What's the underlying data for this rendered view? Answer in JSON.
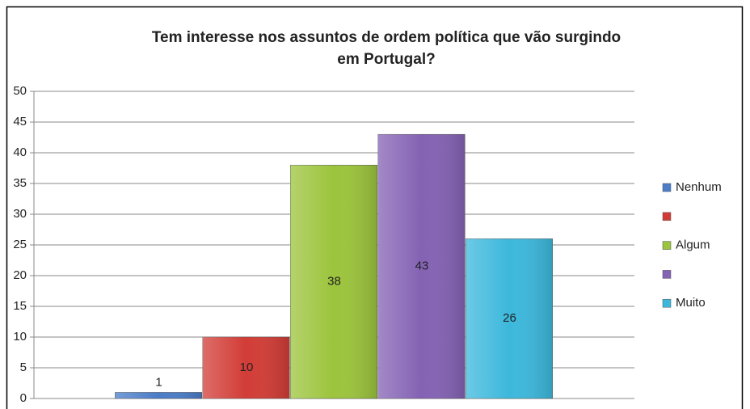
{
  "chart_data": {
    "type": "bar",
    "title": [
      "Tem interesse nos assuntos de ordem política que vão surgindo",
      "em Portugal?"
    ],
    "categories": [
      null
    ],
    "series": [
      {
        "name": "Nenhum",
        "color": "#4a7cc8",
        "values": [
          1
        ]
      },
      {
        "name": null,
        "color": "#d23c36",
        "values": [
          10
        ]
      },
      {
        "name": "Algum",
        "color": "#9cc43c",
        "values": [
          38
        ]
      },
      {
        "name": null,
        "color": "#8462b4",
        "values": [
          43
        ]
      },
      {
        "name": "Muito",
        "color": "#3cb8dc",
        "values": [
          26
        ]
      }
    ],
    "ylim": [
      0,
      50
    ],
    "yticks": [
      0,
      5,
      10,
      15,
      20,
      25,
      30,
      35,
      40,
      45,
      50
    ],
    "grid": true,
    "legend": "right",
    "data_labels": true
  }
}
